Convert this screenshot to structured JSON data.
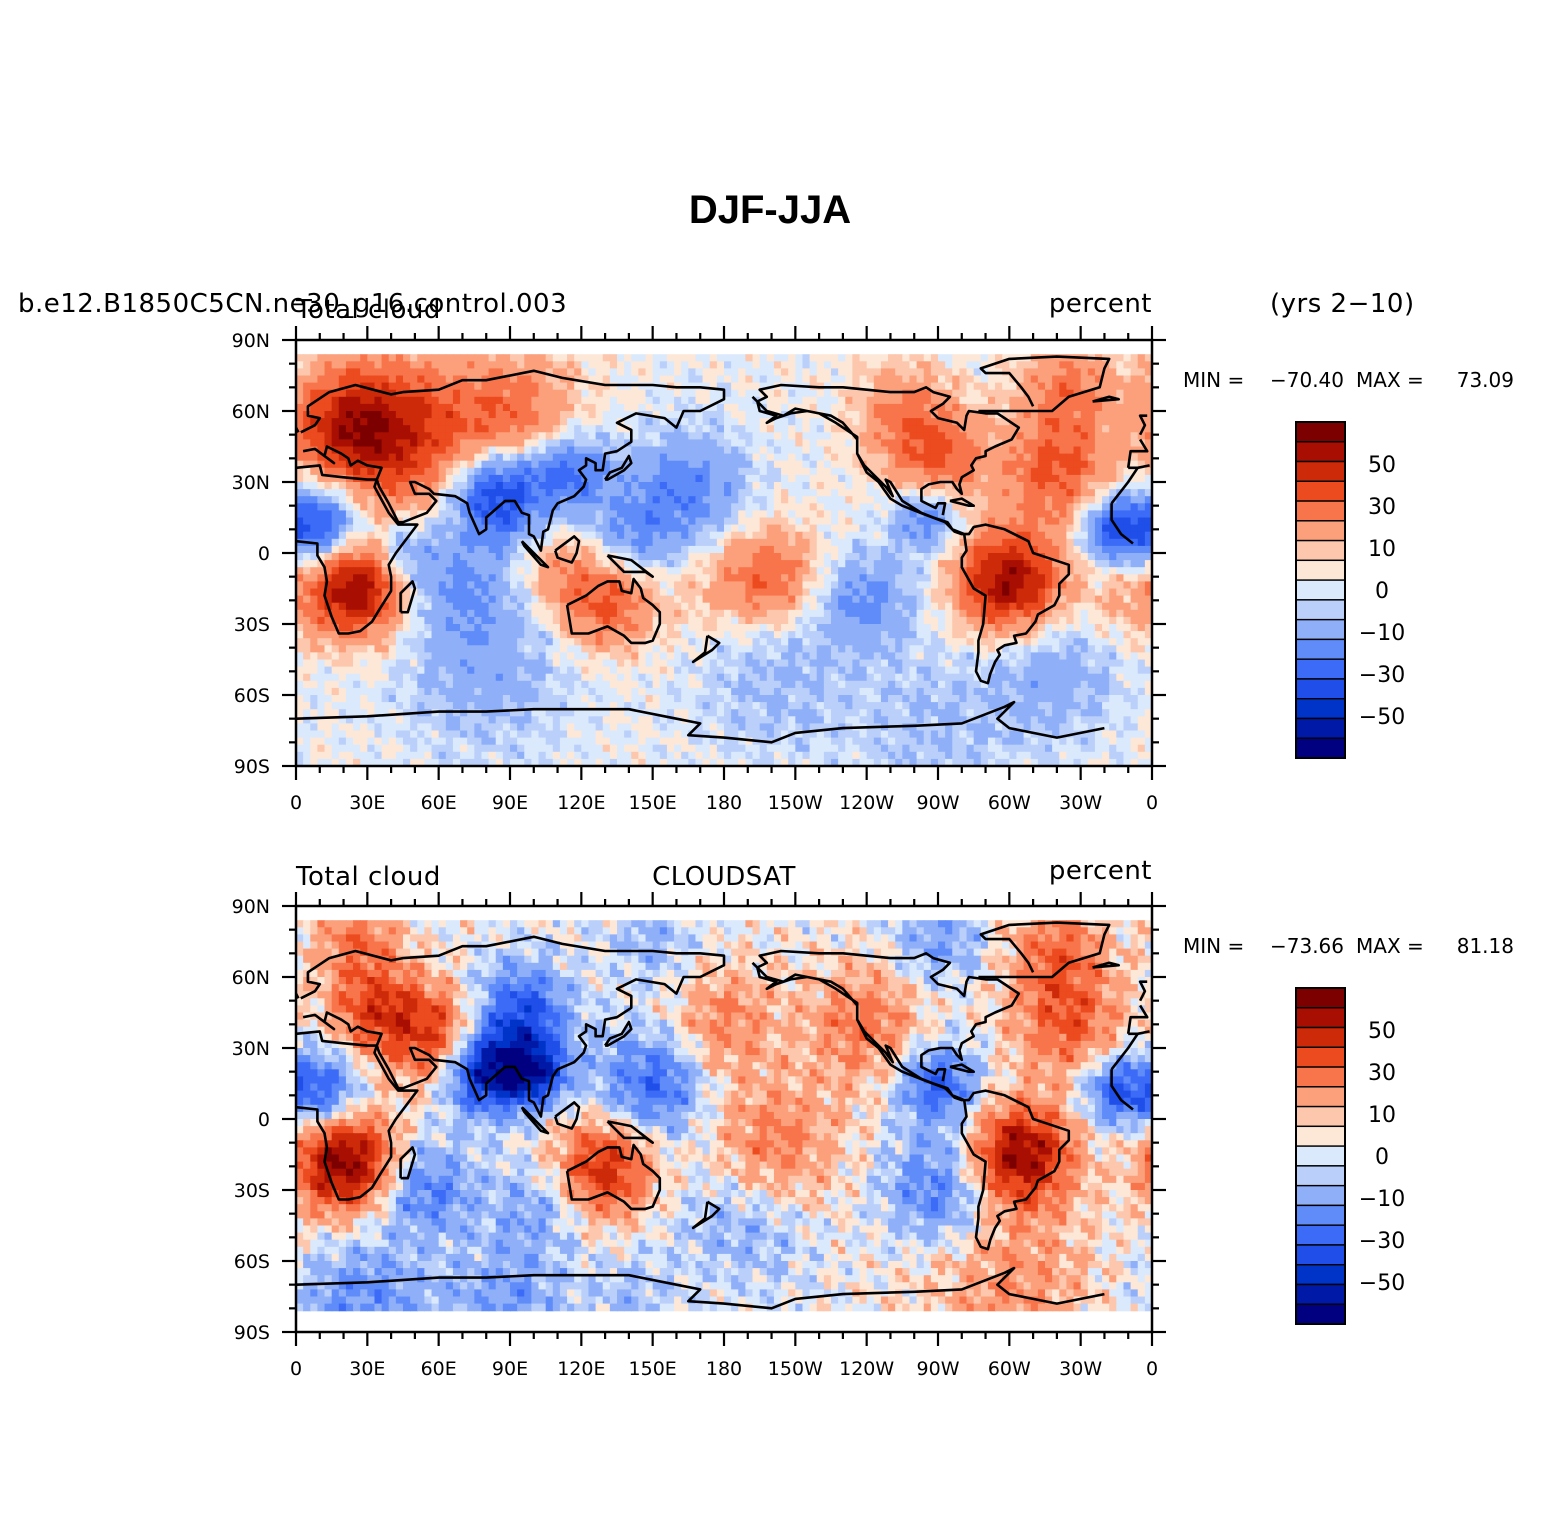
{
  "figure": {
    "title": "DJF-JJA",
    "case_name": "b.e12.B1850C5CN.ne30_g16.control.003",
    "years": "(yrs 2−10)"
  },
  "colors": {
    "levels": [
      "#000080",
      "#0019a6",
      "#0033c8",
      "#1f4fe8",
      "#3c6cf7",
      "#5f8cf9",
      "#8fb0f9",
      "#bad0fb",
      "#dbe9fd",
      "#fde8d8",
      "#fcc7ad",
      "#fca07c",
      "#f8754c",
      "#ec4a1f",
      "#cc2a08",
      "#a80f02",
      "#7d0000"
    ]
  },
  "panels": [
    {
      "id": "model",
      "left_label": "Total cloud",
      "center_label": "",
      "right_label": "percent",
      "min_label": "MIN =",
      "min_value": "−70.40",
      "max_label": "MAX =",
      "max_value": "73.09",
      "bottom_lat": -90
    },
    {
      "id": "obs",
      "left_label": "Total cloud",
      "center_label": "CLOUDSAT",
      "right_label": "percent",
      "min_label": "MIN =",
      "min_value": "−73.66",
      "max_label": "MAX =",
      "max_value": "81.18",
      "bottom_lat": -82
    }
  ],
  "axes": {
    "lon_ticks": [
      "0",
      "30E",
      "60E",
      "90E",
      "120E",
      "150E",
      "180",
      "150W",
      "120W",
      "90W",
      "60W",
      "30W",
      "0"
    ],
    "lat_ticks": [
      "90N",
      "60N",
      "30N",
      "0",
      "30S",
      "60S",
      "90S"
    ]
  },
  "colorbar": {
    "labels": [
      "50",
      "30",
      "10",
      "0",
      "−10",
      "−30",
      "−50"
    ]
  }
}
